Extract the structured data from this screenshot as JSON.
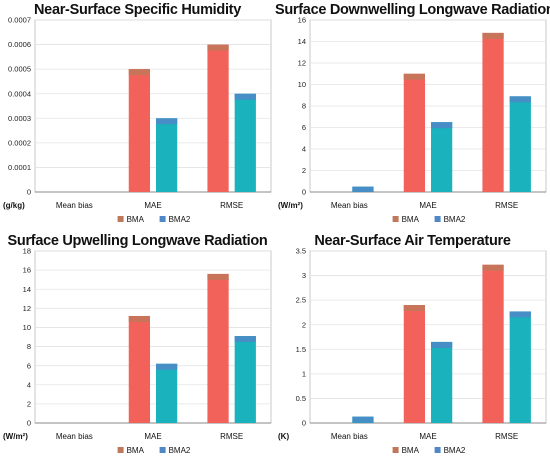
{
  "colors": {
    "BMA": "#c0785a",
    "BMA2": "#4f87c7",
    "bar_red": "#f2625a",
    "bar_teal": "#19b2bd"
  },
  "legend": [
    "BMA",
    "BMA2"
  ],
  "chart_data": [
    {
      "type": "bar",
      "title": "Near-Surface Specific Humidity",
      "unit": "(g/kg)",
      "categories": [
        "Mean bias",
        "MAE",
        "RMSE"
      ],
      "series": [
        {
          "name": "BMA",
          "values": [
            0,
            0.0005,
            0.0006
          ]
        },
        {
          "name": "BMA2",
          "values": [
            0,
            0.0003,
            0.0004
          ]
        }
      ],
      "ylim": [
        0,
        0.0007
      ],
      "yticks": [
        "0",
        "0.0001",
        "0.0002",
        "0.0003",
        "0.0004",
        "0.0005",
        "0.0006",
        "0.0007"
      ],
      "grid": true,
      "legend_position": "bottom"
    },
    {
      "type": "bar",
      "title": "Surface Downwelling Longwave Radiation",
      "unit": "(W/m²)",
      "categories": [
        "Mean bias",
        "MAE",
        "RMSE"
      ],
      "series": [
        {
          "name": "BMA",
          "values": [
            0,
            11,
            14.8
          ]
        },
        {
          "name": "BMA2",
          "values": [
            0.5,
            6.5,
            8.9
          ]
        }
      ],
      "ylim": [
        0,
        16
      ],
      "yticks": [
        "0",
        "2",
        "4",
        "6",
        "8",
        "10",
        "12",
        "14",
        "16"
      ],
      "grid": true,
      "legend_position": "bottom"
    },
    {
      "type": "bar",
      "title": "Surface Upwelling Longwave Radiation",
      "unit": "(W/m²)",
      "categories": [
        "Mean bias",
        "MAE",
        "RMSE"
      ],
      "series": [
        {
          "name": "BMA",
          "values": [
            0,
            11.2,
            15.6
          ]
        },
        {
          "name": "BMA2",
          "values": [
            0,
            6.2,
            9.1
          ]
        }
      ],
      "ylim": [
        0,
        18
      ],
      "yticks": [
        "0",
        "2",
        "4",
        "6",
        "8",
        "10",
        "12",
        "14",
        "16",
        "18"
      ],
      "grid": true,
      "legend_position": "bottom"
    },
    {
      "type": "bar",
      "title": "Near-Surface Air Temperature",
      "unit": "(K)",
      "categories": [
        "Mean bias",
        "MAE",
        "RMSE"
      ],
      "series": [
        {
          "name": "BMA",
          "values": [
            0,
            2.4,
            3.22
          ]
        },
        {
          "name": "BMA2",
          "values": [
            0.13,
            1.65,
            2.27
          ]
        }
      ],
      "ylim": [
        0,
        3.5
      ],
      "yticks": [
        "0",
        "0.5",
        "1",
        "1.5",
        "2",
        "2.5",
        "3",
        "3.5"
      ],
      "grid": true,
      "legend_position": "bottom"
    }
  ]
}
